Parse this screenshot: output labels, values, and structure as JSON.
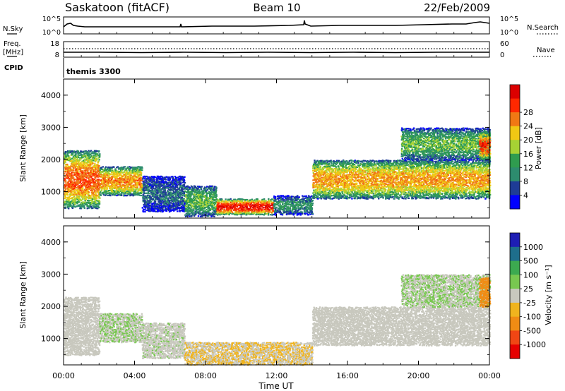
{
  "header": {
    "station": "Saskatoon (fitACF)",
    "beam": "Beam 10",
    "date": "22/Feb/2009"
  },
  "noise_panel": {
    "left_label": "N.Sky",
    "left_ticks": [
      "10^5",
      "10^0"
    ],
    "right_label": "N.Search",
    "right_ticks": [
      "10^5",
      "10^0"
    ]
  },
  "freq_panel": {
    "left_label_1": "Freq.",
    "left_label_2": "[MHz]",
    "left_ticks": [
      "18",
      "8"
    ],
    "right_label": "Nave",
    "right_ticks": [
      "60",
      "0"
    ]
  },
  "cpid_panel": {
    "label": "CPID",
    "program": "themis 3300"
  },
  "x_axis": {
    "label": "Time UT",
    "ticks": [
      "00:00",
      "04:00",
      "08:00",
      "12:00",
      "16:00",
      "20:00",
      "00:00"
    ]
  },
  "power_panel": {
    "ylabel": "Slant Range [km]",
    "yticks": [
      "1000",
      "2000",
      "3000",
      "4000"
    ],
    "colorbar_label": "Power [dB]",
    "colorbar_ticks": [
      "4",
      "8",
      "12",
      "16",
      "20",
      "24",
      "28"
    ]
  },
  "velocity_panel": {
    "ylabel": "Slant Range [km]",
    "yticks": [
      "1000",
      "2000",
      "3000",
      "4000"
    ],
    "colorbar_label": "Velocity [m s⁻¹]",
    "colorbar_ticks": [
      "1000",
      "500",
      "100",
      "25",
      "-25",
      "-100",
      "-500",
      "-1000"
    ]
  },
  "colors": {
    "power_scale": [
      "#0000ff",
      "#1e3c96",
      "#2d8c6e",
      "#2f9c4f",
      "#a6d234",
      "#f0c814",
      "#f07814",
      "#ff2800",
      "#dc0000"
    ],
    "velocity_scale": [
      "#1e1eb4",
      "#1e6e8c",
      "#3caa50",
      "#78c850",
      "#c8c8be",
      "#f0b41e",
      "#f08c14",
      "#f04614",
      "#e60000"
    ]
  },
  "chart_data": [
    {
      "type": "heatmap",
      "name": "power",
      "xlabel": "Time UT",
      "ylabel": "Slant Range [km]",
      "xlim": [
        0,
        24
      ],
      "ylim": [
        180,
        4500
      ],
      "value_label": "Power [dB]",
      "value_range": [
        0,
        32
      ],
      "scatter_patches": [
        {
          "t0": 0.0,
          "t1": 2.0,
          "r0": 500,
          "r1": 2300,
          "peak": 25
        },
        {
          "t0": 2.0,
          "t1": 4.4,
          "r0": 900,
          "r1": 1800,
          "peak": 23
        },
        {
          "t0": 4.4,
          "t1": 6.8,
          "r0": 400,
          "r1": 1500,
          "peak": 7
        },
        {
          "t0": 6.8,
          "t1": 8.6,
          "r0": 250,
          "r1": 1200,
          "peak": 14
        },
        {
          "t0": 8.6,
          "t1": 11.8,
          "r0": 300,
          "r1": 800,
          "peak": 29
        },
        {
          "t0": 11.8,
          "t1": 14.0,
          "r0": 300,
          "r1": 900,
          "peak": 10
        },
        {
          "t0": 14.0,
          "t1": 24.0,
          "r0": 800,
          "r1": 2000,
          "peak": 22
        },
        {
          "t0": 19.0,
          "t1": 24.0,
          "r0": 2000,
          "r1": 3000,
          "peak": 14
        },
        {
          "t0": 23.4,
          "t1": 24.0,
          "r0": 2000,
          "r1": 2900,
          "peak": 27
        }
      ]
    },
    {
      "type": "heatmap",
      "name": "velocity",
      "xlabel": "Time UT",
      "ylabel": "Slant Range [km]",
      "xlim": [
        0,
        24
      ],
      "ylim": [
        180,
        4500
      ],
      "value_label": "Velocity [m s⁻¹]",
      "value_range": [
        -1000,
        1000
      ],
      "scatter_patches": [
        {
          "t0": 0.0,
          "t1": 2.0,
          "r0": 500,
          "r1": 2300,
          "typical": 25
        },
        {
          "t0": 2.0,
          "t1": 4.4,
          "r0": 900,
          "r1": 1800,
          "typical": 100
        },
        {
          "t0": 4.4,
          "t1": 6.8,
          "r0": 400,
          "r1": 1500,
          "typical": 60
        },
        {
          "t0": 6.8,
          "t1": 14.0,
          "r0": 200,
          "r1": 900,
          "typical": -100
        },
        {
          "t0": 14.0,
          "t1": 24.0,
          "r0": 800,
          "r1": 2000,
          "typical": 0
        },
        {
          "t0": 19.0,
          "t1": 24.0,
          "r0": 2000,
          "r1": 3000,
          "typical": 100
        },
        {
          "t0": 23.4,
          "t1": 24.0,
          "r0": 2000,
          "r1": 2900,
          "typical": -400
        }
      ]
    }
  ]
}
